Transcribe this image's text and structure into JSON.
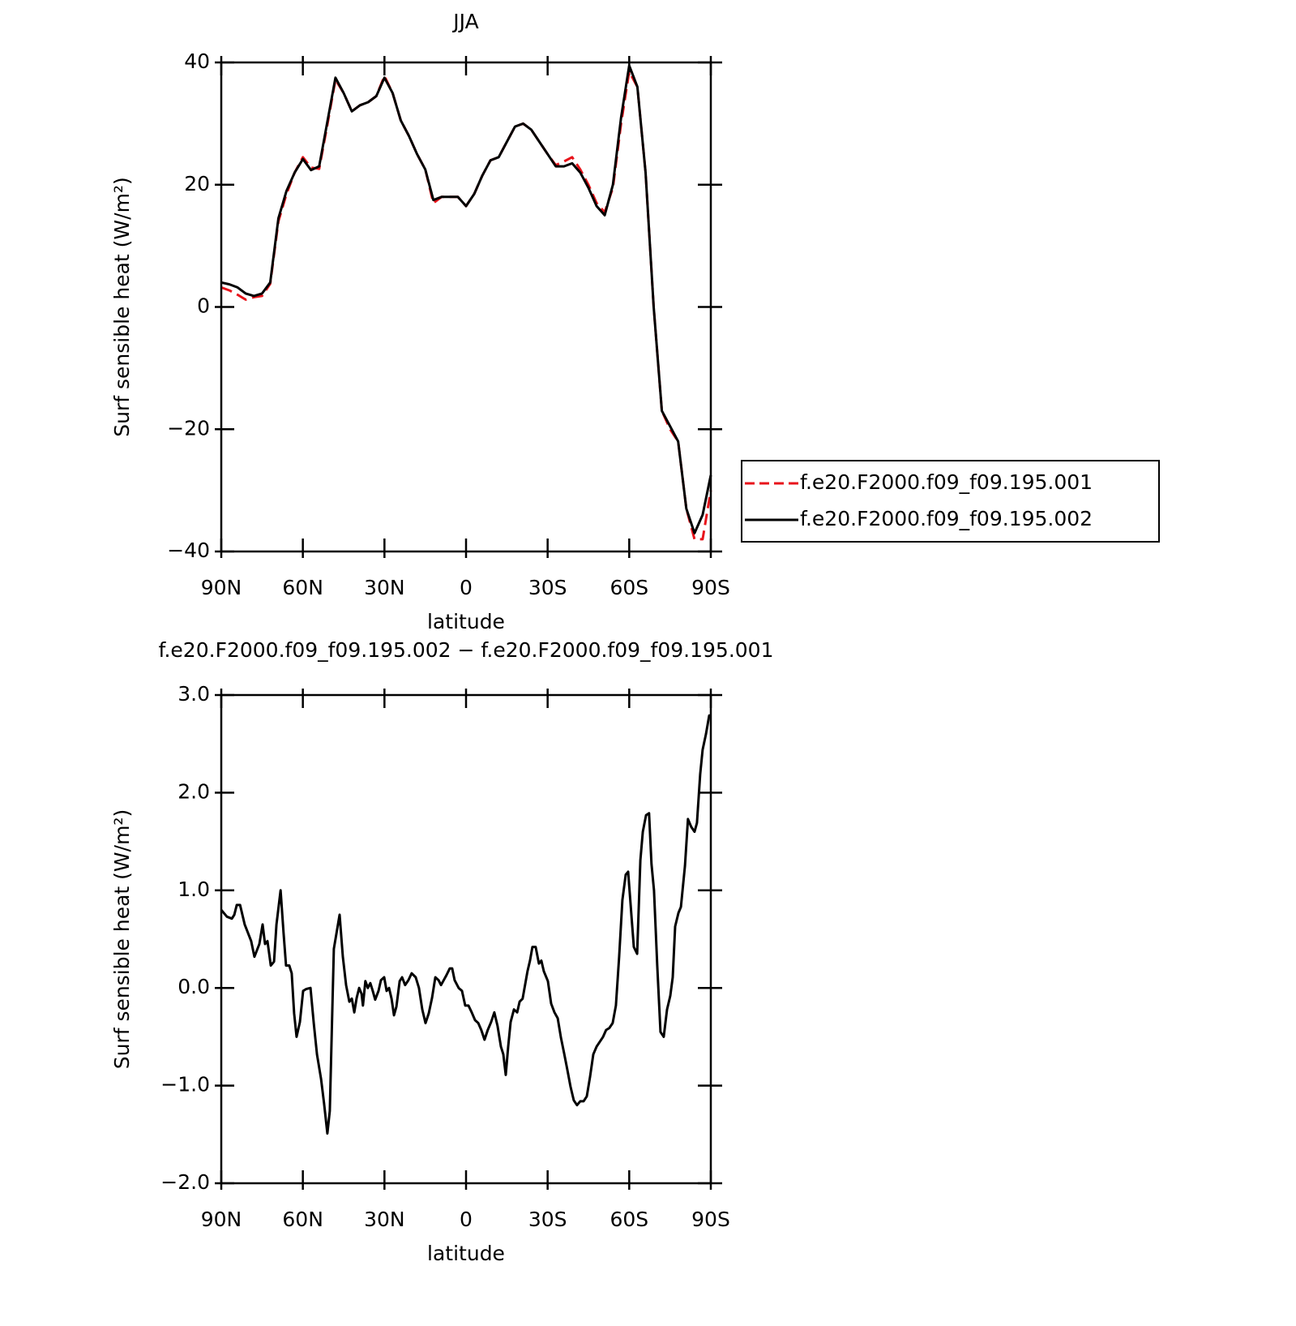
{
  "chart_data": [
    {
      "type": "line",
      "title": "JJA",
      "xlabel": "latitude",
      "ylabel": "Surf sensible heat (W/m²)",
      "x": [
        90,
        87,
        84,
        81,
        78,
        75,
        72,
        69,
        66,
        63,
        60,
        57,
        54,
        51,
        48,
        45,
        42,
        39,
        36,
        33,
        30,
        27,
        24,
        21,
        18,
        15,
        12,
        9,
        6,
        3,
        0,
        -3,
        -6,
        -9,
        -12,
        -15,
        -18,
        -21,
        -24,
        -27,
        -30,
        -33,
        -36,
        -39,
        -42,
        -45,
        -48,
        -51,
        -54,
        -57,
        -60,
        -63,
        -66,
        -69,
        -72,
        -75,
        -78,
        -81,
        -84,
        -87,
        -90
      ],
      "series": [
        {
          "name": "f.e20.F2000.f09_f09.195.001",
          "color": "#e8141b",
          "style": "dashed",
          "values": [
            3.2,
            2.7,
            2,
            1.2,
            1.6,
            1.8,
            3.8,
            14,
            18.5,
            22,
            24.5,
            22.8,
            22.6,
            29.8,
            37.2,
            35,
            32,
            33,
            33.5,
            34.5,
            37.8,
            35,
            30.5,
            28,
            25,
            22.5,
            17,
            18,
            18,
            18,
            16.5,
            18.5,
            21.5,
            24,
            24.5,
            27,
            29.5,
            30,
            29,
            27,
            25,
            23.2,
            23.8,
            24.5,
            22.5,
            20,
            17,
            15.5,
            19.5,
            30,
            38.5,
            36,
            22,
            0,
            -17,
            -20,
            -22,
            -33,
            -38,
            -38,
            -30
          ]
        },
        {
          "name": "f.e20.F2000.f09_f09.195.002",
          "color": "#000000",
          "style": "solid",
          "values": [
            4,
            3.7,
            3.2,
            2.2,
            1.8,
            2.2,
            4,
            14.5,
            19,
            22,
            24.2,
            22.4,
            23,
            30.3,
            37.5,
            35,
            32,
            33,
            33.5,
            34.5,
            37.5,
            35,
            30.5,
            28,
            25,
            22.5,
            17.5,
            18,
            18,
            18,
            16.5,
            18.5,
            21.5,
            24,
            24.5,
            27,
            29.5,
            30,
            29,
            27,
            25,
            23,
            23,
            23.5,
            22,
            19.5,
            16.5,
            15,
            20,
            31,
            39.5,
            36,
            22,
            0,
            -17,
            -19.5,
            -22,
            -33,
            -37,
            -34,
            -27.5
          ]
        }
      ],
      "xlim": [
        90,
        -90
      ],
      "xticks": [
        {
          "value": 90,
          "label": "90N"
        },
        {
          "value": 60,
          "label": "60N"
        },
        {
          "value": 30,
          "label": "30N"
        },
        0,
        {
          "value": -30,
          "label": "30S"
        },
        {
          "value": -60,
          "label": "60S"
        },
        {
          "value": -90,
          "label": "90S"
        }
      ],
      "ylim": [
        -40,
        40
      ],
      "yticks": [
        {
          "value": -40,
          "label": "−40"
        },
        {
          "value": -20,
          "label": "−20"
        },
        0,
        20,
        40
      ],
      "legend": "right"
    },
    {
      "type": "line",
      "title": "f.e20.F2000.f09_f09.195.002 − f.e20.F2000.f09_f09.195.001",
      "xlabel": "latitude",
      "ylabel": "Surf sensible heat (W/m²)",
      "x": [
        90,
        87.9,
        86.1,
        85.2,
        84.3,
        83.1,
        81.4,
        79,
        77.8,
        76,
        74.8,
        73.9,
        73,
        71.8,
        70.6,
        69.7,
        68.2,
        67.1,
        66.2,
        65,
        64.1,
        63.2,
        62.3,
        61.1,
        59.9,
        58.7,
        57.2,
        56,
        54.8,
        53.3,
        52.2,
        51,
        50.1,
        48.6,
        46.5,
        45.3,
        44.1,
        42.9,
        42,
        41.1,
        40.2,
        39.3,
        38.4,
        37.9,
        37,
        36.1,
        35.2,
        34.3,
        33.4,
        32.2,
        31.3,
        30.1,
        29.2,
        28.3,
        27.4,
        26.5,
        25.6,
        24.4,
        23.5,
        22.4,
        21.2,
        20,
        18.5,
        17.3,
        16.1,
        14.9,
        13.7,
        12.5,
        11.3,
        10.1,
        9.2,
        8.4,
        7.2,
        6,
        5.1,
        4.2,
        2.7,
        1.5,
        0.3,
        -0.9,
        -2.1,
        -3.3,
        -4.5,
        -5.6,
        -6.8,
        -8,
        -9.2,
        -10.4,
        -11.6,
        -12.8,
        -13.7,
        -14.6,
        -15.5,
        -16.4,
        -17.6,
        -18.8,
        -19.7,
        -20.8,
        -21.7,
        -22.6,
        -23.5,
        -24.4,
        -25.6,
        -26.8,
        -27.7,
        -28.6,
        -30.1,
        -31.3,
        -32.5,
        -33.7,
        -34.9,
        -36,
        -37.2,
        -38.4,
        -39.6,
        -40.8,
        -42,
        -43.2,
        -44.4,
        -45.6,
        -46.8,
        -48,
        -49.2,
        -50.4,
        -51.5,
        -52.7,
        -53.9,
        -55.1,
        -56.3,
        -57.5,
        -58.7,
        -59.6,
        -60.5,
        -61.7,
        -62.9,
        -64.1,
        -65,
        -66.2,
        -67.3,
        -68.2,
        -69.1,
        -70.3,
        -71.5,
        -72.7,
        -73.9,
        -75.1,
        -76,
        -76.9,
        -78.1,
        -79,
        -80.5,
        -81.6,
        -82.8,
        -84,
        -84.9,
        -86.1,
        -87,
        -88.2,
        -89.4,
        -90
      ],
      "values": [
        0.8,
        0.73,
        0.71,
        0.75,
        0.85,
        0.85,
        0.65,
        0.48,
        0.32,
        0.45,
        0.65,
        0.45,
        0.48,
        0.23,
        0.27,
        0.65,
        1,
        0.57,
        0.23,
        0.23,
        0.15,
        -0.26,
        -0.5,
        -0.35,
        -0.03,
        -0.01,
        0,
        -0.36,
        -0.68,
        -0.93,
        -1.18,
        -1.49,
        -1.26,
        0.4,
        0.75,
        0.32,
        0.03,
        -0.14,
        -0.11,
        -0.25,
        -0.1,
        0,
        -0.06,
        -0.18,
        0.07,
        0,
        0.05,
        -0.03,
        -0.12,
        -0.03,
        0.08,
        0.11,
        -0.03,
        0,
        -0.11,
        -0.28,
        -0.19,
        0.07,
        0.11,
        0.03,
        0.08,
        0.15,
        0.11,
        0,
        -0.22,
        -0.36,
        -0.26,
        -0.1,
        0.11,
        0.08,
        0.03,
        0.07,
        0.13,
        0.2,
        0.2,
        0.08,
        0,
        -0.03,
        -0.18,
        -0.18,
        -0.25,
        -0.33,
        -0.36,
        -0.43,
        -0.53,
        -0.43,
        -0.35,
        -0.25,
        -0.39,
        -0.6,
        -0.68,
        -0.89,
        -0.6,
        -0.35,
        -0.22,
        -0.25,
        -0.14,
        -0.11,
        0.03,
        0.17,
        0.28,
        0.42,
        0.42,
        0.25,
        0.28,
        0.17,
        0.07,
        -0.16,
        -0.25,
        -0.31,
        -0.51,
        -0.66,
        -0.83,
        -1.01,
        -1.15,
        -1.2,
        -1.16,
        -1.16,
        -1.11,
        -0.91,
        -0.68,
        -0.6,
        -0.55,
        -0.5,
        -0.43,
        -0.41,
        -0.36,
        -0.18,
        0.32,
        0.9,
        1.16,
        1.19,
        0.86,
        0.42,
        0.35,
        1.31,
        1.6,
        1.77,
        1.79,
        1.27,
        1,
        0.23,
        -0.45,
        -0.5,
        -0.22,
        -0.08,
        0.11,
        0.63,
        0.77,
        0.83,
        1.25,
        1.73,
        1.65,
        1.6,
        1.69,
        2.19,
        2.44,
        2.6,
        2.79,
        2.79
      ],
      "color": "#000000",
      "xlim": [
        90,
        -90
      ],
      "xticks": [
        {
          "value": 90,
          "label": "90N"
        },
        {
          "value": 60,
          "label": "60N"
        },
        {
          "value": 30,
          "label": "30N"
        },
        0,
        {
          "value": -30,
          "label": "30S"
        },
        {
          "value": -60,
          "label": "60S"
        },
        {
          "value": -90,
          "label": "90S"
        }
      ],
      "ylim": [
        -2,
        3
      ],
      "yticks": [
        {
          "value": -2,
          "label": "−2.0"
        },
        {
          "value": -1,
          "label": "−1.0"
        },
        {
          "value": 0,
          "label": "0.0"
        },
        {
          "value": 1,
          "label": "1.0"
        },
        {
          "value": 2,
          "label": "2.0"
        },
        {
          "value": 3,
          "label": "3.0"
        }
      ]
    }
  ]
}
